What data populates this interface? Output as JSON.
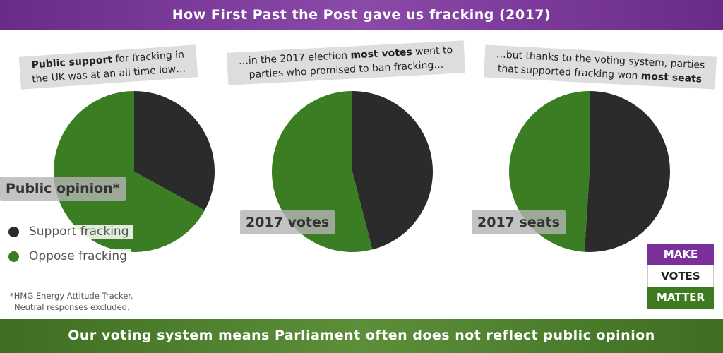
{
  "header": {
    "title": "How First Past the Post gave us fracking (2017)"
  },
  "chart_data": [
    {
      "type": "pie",
      "title": "Public opinion*",
      "annotation": [
        {
          "text": "Public support",
          "bold": true
        },
        {
          "text": " for fracking in the UK was at an all time low…",
          "bold": false
        }
      ],
      "categories": [
        "Support fracking",
        "Oppose fracking"
      ],
      "values": [
        33,
        67
      ],
      "colors": [
        "#2b2b2b",
        "#3a7d22"
      ]
    },
    {
      "type": "pie",
      "title": "2017 votes",
      "annotation": [
        {
          "text": "…in the 2017 election ",
          "bold": false
        },
        {
          "text": "most votes",
          "bold": true
        },
        {
          "text": " went to parties who promised to ban fracking…",
          "bold": false
        }
      ],
      "categories": [
        "Support fracking",
        "Oppose fracking"
      ],
      "values": [
        46,
        54
      ],
      "colors": [
        "#2b2b2b",
        "#3a7d22"
      ]
    },
    {
      "type": "pie",
      "title": "2017 seats",
      "annotation": [
        {
          "text": "…but thanks to the voting system, parties that supported fracking won ",
          "bold": false
        },
        {
          "text": "most seats",
          "bold": true
        }
      ],
      "categories": [
        "Support fracking",
        "Oppose fracking"
      ],
      "values": [
        51,
        49
      ],
      "colors": [
        "#2b2b2b",
        "#3a7d22"
      ]
    }
  ],
  "footnote": [
    "*HMG Energy Attitude Tracker.",
    "Neutral responses excluded."
  ],
  "footer": {
    "text": "Our voting system means Parliament often does not reflect public opinion"
  },
  "logo": [
    "MAKE",
    "VOTES",
    "MATTER"
  ]
}
